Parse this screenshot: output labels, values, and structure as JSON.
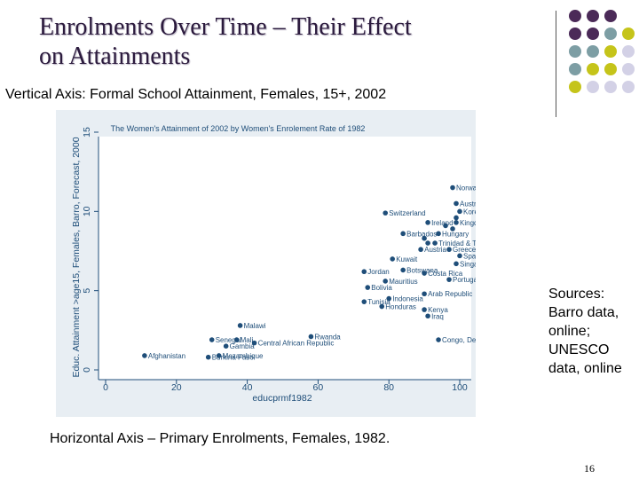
{
  "slide": {
    "title_line1": "Enrolments Over Time – Their Effect",
    "title_line2": "on Attainments",
    "vertical_axis_caption": "Vertical Axis:  Formal School Attainment, Females, 15+, 2002",
    "horizontal_axis_caption": "Horizontal Axis – Primary Enrolments, Females, 1982.",
    "sources_lines": [
      "Sources:",
      "Barro data,",
      "online;",
      "UNESCO",
      "data, online"
    ],
    "page_number": "16"
  },
  "colors": {
    "title": "#2b1a3d",
    "panel_bg": "#e8eef3",
    "plot_bg": "#ffffff",
    "marker": "#1f4e79",
    "label": "#1f4e79",
    "dot_purple": "#4b2a58",
    "dot_teal": "#7d9ea4",
    "dot_olive": "#c5c41a",
    "dot_lavender": "#d3d1e6"
  },
  "chart_data": {
    "type": "scatter",
    "title": "The Women's Attainment of 2002 by Women's Enrolement Rate of 1982",
    "xlabel": "educprmf1982",
    "ylabel": "Educ. Attainment >age15, Females, Barro, Forecast, 2000",
    "xlim": [
      0,
      100
    ],
    "ylim": [
      0,
      15
    ],
    "xticks": [
      0,
      20,
      40,
      60,
      80,
      100
    ],
    "yticks": [
      0,
      5,
      10,
      15
    ],
    "grid": false,
    "points": [
      {
        "label": "Norway",
        "x": 98,
        "y": 11.5
      },
      {
        "label": "Australia",
        "x": 99,
        "y": 10.5
      },
      {
        "label": "Korea, Rep. of",
        "x": 100,
        "y": 10.0
      },
      {
        "label": "Switzerland",
        "x": 79,
        "y": 9.9
      },
      {
        "label": "",
        "x": 99,
        "y": 9.6
      },
      {
        "label": "Ireland",
        "x": 91,
        "y": 9.3
      },
      {
        "label": "Kingdom",
        "x": 99,
        "y": 9.3
      },
      {
        "label": "",
        "x": 96,
        "y": 9.1
      },
      {
        "label": "",
        "x": 98,
        "y": 8.9
      },
      {
        "label": "Barbados",
        "x": 84,
        "y": 8.6
      },
      {
        "label": "Hungary",
        "x": 94,
        "y": 8.6
      },
      {
        "label": "",
        "x": 90,
        "y": 8.3
      },
      {
        "label": "Trinidad & Tobago",
        "x": 93,
        "y": 8.0
      },
      {
        "label": "",
        "x": 91,
        "y": 8.0
      },
      {
        "label": "Austria",
        "x": 89,
        "y": 7.6
      },
      {
        "label": "Greece",
        "x": 97,
        "y": 7.6
      },
      {
        "label": "Spain",
        "x": 100,
        "y": 7.2
      },
      {
        "label": "Kuwait",
        "x": 81,
        "y": 7.0
      },
      {
        "label": "Singapore",
        "x": 99,
        "y": 6.7
      },
      {
        "label": "Jordan",
        "x": 73,
        "y": 6.2
      },
      {
        "label": "Botswana",
        "x": 84,
        "y": 6.3
      },
      {
        "label": "Costa Rica",
        "x": 90,
        "y": 6.1
      },
      {
        "label": "Portugal",
        "x": 97,
        "y": 5.7
      },
      {
        "label": "Mauritius",
        "x": 79,
        "y": 5.6
      },
      {
        "label": "Bolivia",
        "x": 74,
        "y": 5.2
      },
      {
        "label": "Arab Republic",
        "x": 90,
        "y": 4.8
      },
      {
        "label": "Indonesia",
        "x": 80,
        "y": 4.5
      },
      {
        "label": "Tunisia",
        "x": 73,
        "y": 4.3
      },
      {
        "label": "Honduras",
        "x": 78,
        "y": 4.0
      },
      {
        "label": "Kenya",
        "x": 90,
        "y": 3.8
      },
      {
        "label": "Iraq",
        "x": 91,
        "y": 3.4
      },
      {
        "label": "Malawi",
        "x": 38,
        "y": 2.8
      },
      {
        "label": "Rwanda",
        "x": 58,
        "y": 2.1
      },
      {
        "label": "Senegal",
        "x": 30,
        "y": 1.9
      },
      {
        "label": "Mali",
        "x": 37,
        "y": 1.9
      },
      {
        "label": "Central African Republic",
        "x": 42,
        "y": 1.7
      },
      {
        "label": "Gambia",
        "x": 34,
        "y": 1.5
      },
      {
        "label": "Congo, Dem. Rep. of the",
        "x": 94,
        "y": 1.9
      },
      {
        "label": "Afghanistan",
        "x": 11,
        "y": 0.9
      },
      {
        "label": "Mozambique",
        "x": 32,
        "y": 0.9
      },
      {
        "label": "Burkina Faso",
        "x": 29,
        "y": 0.8
      }
    ]
  }
}
